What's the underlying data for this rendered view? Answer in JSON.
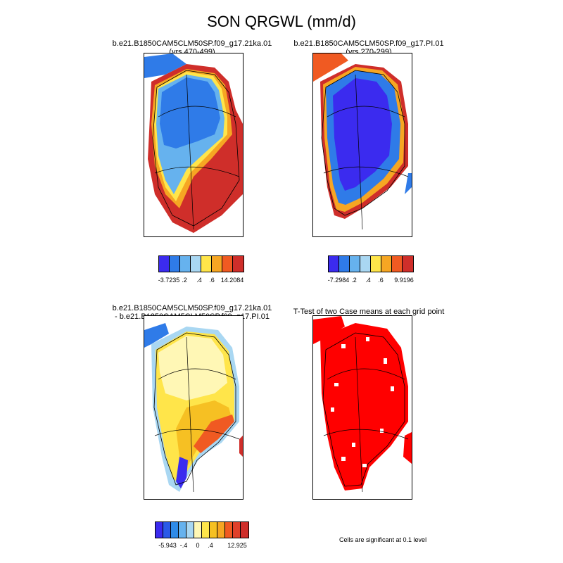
{
  "figure_title": "SON QRGWL (mm/d)",
  "panels": {
    "p1": {
      "title_line1": "b.e21.B1850CAM5CLM50SP.f09_g17.21ka.01",
      "title_line2": "(yrs 470-499)"
    },
    "p2": {
      "title_line1": "b.e21.B1850CAM5CLM50SP.f09_g17.PI.01",
      "title_line2": "(yrs 270-299)"
    },
    "p3": {
      "title_line1": "b.e21.B1850CAM5CLM50SP.f09_g17.21ka.01",
      "title_line2": "- b.e21.B1850CAM5CLM50SP.f09_g17.PI.01"
    },
    "p4": {
      "title_line1": "T-Test of two Case means at each grid point",
      "note": "Cells are significant at 0.1 level"
    }
  },
  "colorbars": {
    "cb1": {
      "colors": [
        "#3b2bef",
        "#2f7be8",
        "#66b2ee",
        "#a9d7f2",
        "#ffe54a",
        "#f6a623",
        "#f05a22",
        "#cf2e2a"
      ],
      "labels": [
        "-3.7235",
        ".2",
        ".4",
        ".6",
        "14.2084"
      ]
    },
    "cb2": {
      "colors": [
        "#3b2bef",
        "#2f7be8",
        "#66b2ee",
        "#a9d7f2",
        "#ffe54a",
        "#f6a623",
        "#f05a22",
        "#cf2e2a"
      ],
      "labels": [
        "-7.2984",
        ".2",
        ".4",
        ".6",
        "9.9196"
      ]
    },
    "cb3": {
      "colors": [
        "#3b2bef",
        "#2a5ae8",
        "#2f8be8",
        "#66b2ee",
        "#a9d7f2",
        "#fff7b5",
        "#ffe54a",
        "#f6c023",
        "#f6a623",
        "#f05a22",
        "#e0402a",
        "#cf2e2a"
      ],
      "labels": [
        "-5.943",
        "-.4",
        "0",
        ".4",
        "12.925"
      ]
    }
  },
  "chart_data": [
    {
      "type": "heatmap",
      "title": "b.e21.B1850CAM5CLM50SP.f09_g17.21ka.01 (yrs 470-499)",
      "variable": "SON QRGWL",
      "units": "mm/d",
      "range": [
        -3.7235,
        14.2084
      ],
      "colorbar_labels": [
        "-3.7235",
        ".2",
        ".4",
        ".6",
        "14.2084"
      ]
    },
    {
      "type": "heatmap",
      "title": "b.e21.B1850CAM5CLM50SP.f09_g17.PI.01 (yrs 270-299)",
      "variable": "SON QRGWL",
      "units": "mm/d",
      "range": [
        -7.2984,
        9.9196
      ],
      "colorbar_labels": [
        "-7.2984",
        ".2",
        ".4",
        ".6",
        "9.9196"
      ]
    },
    {
      "type": "heatmap",
      "title": "b.e21.B1850CAM5CLM50SP.f09_g17.21ka.01 - b.e21.B1850CAM5CLM50SP.f09_g17.PI.01",
      "variable": "SON QRGWL difference",
      "units": "mm/d",
      "range": [
        -5.943,
        12.925
      ],
      "colorbar_labels": [
        "-5.943",
        "-.4",
        "0",
        ".4",
        "12.925"
      ]
    },
    {
      "type": "heatmap",
      "title": "T-Test of two Case means at each grid point",
      "note": "Cells are significant at 0.1 level"
    }
  ]
}
